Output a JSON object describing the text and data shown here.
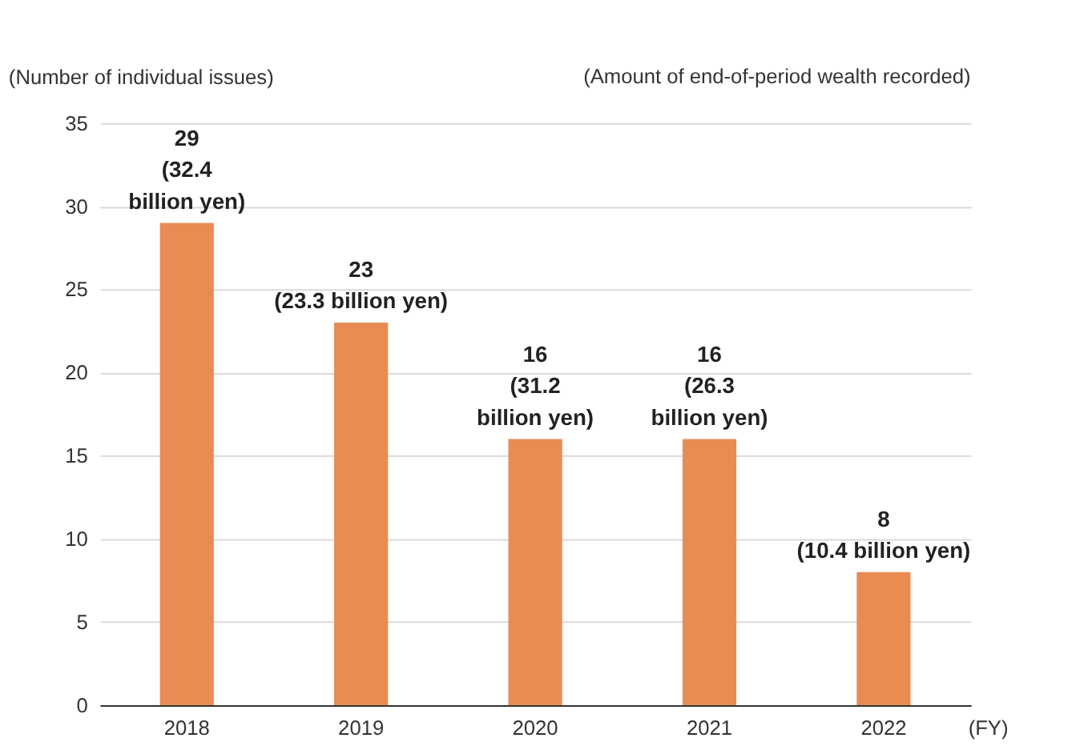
{
  "chart_data": {
    "type": "bar",
    "ylabel": "(Number of individual issues)",
    "xlabel": "(FY)",
    "annotations": [
      "(Amount of end-of-period wealth recorded)"
    ],
    "categories": [
      "2018",
      "2019",
      "2020",
      "2021",
      "2022"
    ],
    "values": [
      29,
      23,
      16,
      16,
      8
    ],
    "color": "#e88c53",
    "value_labels": [
      "29\n(32.4\nbillion yen)",
      "23\n(23.3 billion yen)",
      "16\n(31.2\nbillion yen)",
      "16\n(26.3\nbillion yen)",
      "8\n(10.4 billion yen)"
    ],
    "ylim": [
      0,
      35
    ],
    "yticks": [
      0,
      5,
      10,
      15,
      20,
      25,
      30,
      35
    ],
    "grid": "y"
  }
}
